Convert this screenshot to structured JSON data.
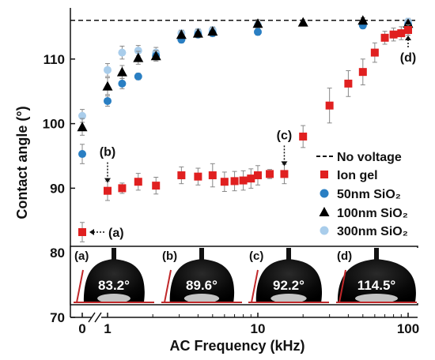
{
  "chart_data": {
    "type": "scatter",
    "xlabel": "AC Frequency (kHz)",
    "ylabel": "Contact angle (°)",
    "x_scale": "log",
    "x_ticks": [
      "0",
      "1",
      "10",
      "100"
    ],
    "y_ticks": [
      "70",
      "80",
      "90",
      "100",
      "110"
    ],
    "ylim": [
      70,
      117.5
    ],
    "legend_position": "right, middle",
    "reference_line": {
      "name": "No voltage",
      "y": 116,
      "style": "dashed"
    },
    "series": [
      {
        "name": "Ion gel",
        "marker": "square",
        "color": "#e02020",
        "points": [
          {
            "x": 0,
            "y": 83.2,
            "err": 1.5
          },
          {
            "x": 1,
            "y": 89.6,
            "err": 1.5
          },
          {
            "x": 1.25,
            "y": 90.0,
            "err": 0.8
          },
          {
            "x": 1.6,
            "y": 91.0,
            "err": 1.3
          },
          {
            "x": 2.1,
            "y": 90.4,
            "err": 1.3
          },
          {
            "x": 3.1,
            "y": 92.0,
            "err": 1.3
          },
          {
            "x": 4.0,
            "y": 91.8,
            "err": 1.3
          },
          {
            "x": 5.0,
            "y": 92.0,
            "err": 1.8
          },
          {
            "x": 6.0,
            "y": 91.0,
            "err": 1.5
          },
          {
            "x": 7.0,
            "y": 91.1,
            "err": 1.5
          },
          {
            "x": 8.0,
            "y": 91.2,
            "err": 1.5
          },
          {
            "x": 9.0,
            "y": 91.5,
            "err": 1.5
          },
          {
            "x": 10.0,
            "y": 92.0,
            "err": 1.5
          },
          {
            "x": 12.0,
            "y": 92.2,
            "err": 0.7
          },
          {
            "x": 15.0,
            "y": 92.2,
            "err": 1.5
          },
          {
            "x": 20.0,
            "y": 98.0,
            "err": 1.7
          },
          {
            "x": 30.0,
            "y": 102.8,
            "err": 2.7
          },
          {
            "x": 40.0,
            "y": 106.2,
            "err": 2.0
          },
          {
            "x": 50.0,
            "y": 108.0,
            "err": 2.0
          },
          {
            "x": 60.0,
            "y": 111.0,
            "err": 1.5
          },
          {
            "x": 70.0,
            "y": 113.3,
            "err": 1.0
          },
          {
            "x": 80.0,
            "y": 113.8,
            "err": 1.0
          },
          {
            "x": 90.0,
            "y": 114.0,
            "err": 1.0
          },
          {
            "x": 100.0,
            "y": 114.5,
            "err": 0.8
          }
        ]
      },
      {
        "name": "50nm SiO₂",
        "marker": "circle",
        "color": "#2a7fc3",
        "points": [
          {
            "x": 0,
            "y": 95.3,
            "err": 1.5
          },
          {
            "x": 1,
            "y": 103.5,
            "err": 0.8
          },
          {
            "x": 1.25,
            "y": 106.2,
            "err": 0.8
          },
          {
            "x": 1.6,
            "y": 107.3,
            "err": 0.5
          },
          {
            "x": 2.1,
            "y": 110.5,
            "err": 0.8
          },
          {
            "x": 3.1,
            "y": 113.0,
            "err": 0.5
          },
          {
            "x": 4.0,
            "y": 113.8,
            "err": 0.5
          },
          {
            "x": 5.0,
            "y": 114.0,
            "err": 0.5
          },
          {
            "x": 10.0,
            "y": 114.2,
            "err": 0.5
          },
          {
            "x": 50.0,
            "y": 115.2,
            "err": 0.5
          },
          {
            "x": 100.0,
            "y": 115.3,
            "err": 0.5
          }
        ]
      },
      {
        "name": "100nm SiO₂",
        "marker": "triangle",
        "color": "#000000",
        "points": [
          {
            "x": 0,
            "y": 99.5,
            "err": 1.3
          },
          {
            "x": 1,
            "y": 105.8,
            "err": 1.3
          },
          {
            "x": 1.25,
            "y": 108.0,
            "err": 1.0
          },
          {
            "x": 1.6,
            "y": 110.2,
            "err": 1.0
          },
          {
            "x": 2.1,
            "y": 110.5,
            "err": 0.8
          },
          {
            "x": 3.1,
            "y": 113.8,
            "err": 0.6
          },
          {
            "x": 4.0,
            "y": 114.0,
            "err": 0.6
          },
          {
            "x": 5.0,
            "y": 114.3,
            "err": 0.6
          },
          {
            "x": 10.0,
            "y": 115.5,
            "err": 0.6
          },
          {
            "x": 20.0,
            "y": 115.7,
            "err": 0.4
          },
          {
            "x": 50.0,
            "y": 116.0,
            "err": 0.4
          },
          {
            "x": 100.0,
            "y": 115.5,
            "err": 0.5
          }
        ]
      },
      {
        "name": "300nm SiO₂",
        "marker": "circle",
        "color": "#a9cdeb",
        "points": [
          {
            "x": 0,
            "y": 101.2,
            "err": 1.0
          },
          {
            "x": 1,
            "y": 108.3,
            "err": 1.0
          },
          {
            "x": 1.25,
            "y": 111.0,
            "err": 1.0
          },
          {
            "x": 1.6,
            "y": 111.3,
            "err": 0.8
          },
          {
            "x": 2.1,
            "y": 111.0,
            "err": 0.8
          },
          {
            "x": 3.1,
            "y": 114.0,
            "err": 0.5
          },
          {
            "x": 4.0,
            "y": 114.2,
            "err": 0.5
          },
          {
            "x": 5.0,
            "y": 114.5,
            "err": 0.5
          },
          {
            "x": 10.0,
            "y": 115.3,
            "err": 0.5
          },
          {
            "x": 50.0,
            "y": 115.3,
            "err": 0.5
          },
          {
            "x": 100.0,
            "y": 115.8,
            "err": 0.5
          }
        ]
      }
    ],
    "annotations": [
      {
        "label": "(a)",
        "x": 0,
        "y": 83.2
      },
      {
        "label": "(b)",
        "x": 1,
        "y": 89.6
      },
      {
        "label": "(c)",
        "x": 15,
        "y": 92.2
      },
      {
        "label": "(d)",
        "x": 100,
        "y": 114.5
      }
    ],
    "insets": [
      {
        "letter": "(a)",
        "angle": "83.2°",
        "contact_deg": 83.2
      },
      {
        "letter": "(b)",
        "angle": "89.6°",
        "contact_deg": 89.6
      },
      {
        "letter": "(c)",
        "angle": "92.2°",
        "contact_deg": 92.2
      },
      {
        "letter": "(d)",
        "angle": "114.5°",
        "contact_deg": 114.5
      }
    ]
  }
}
